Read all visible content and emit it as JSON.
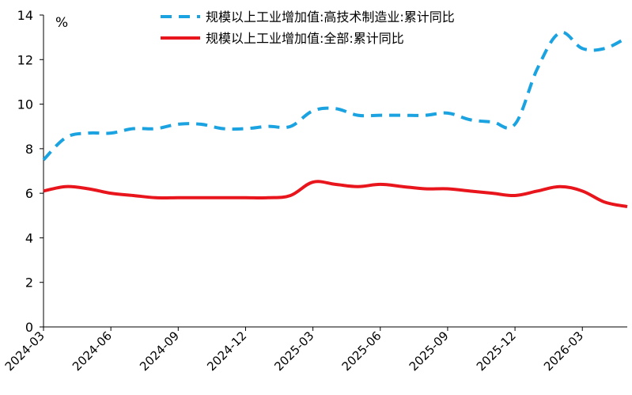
{
  "chart_data": {
    "type": "line",
    "unit_label": "%",
    "ylim": [
      0,
      14
    ],
    "y_ticks": [
      0,
      2,
      4,
      6,
      8,
      10,
      12,
      14
    ],
    "x": [
      "2024-03",
      "2024-04",
      "2024-05",
      "2024-06",
      "2024-07",
      "2024-08",
      "2024-09",
      "2024-10",
      "2024-11",
      "2024-12",
      "2025-01",
      "2025-02",
      "2025-03",
      "2025-04",
      "2025-05",
      "2025-06",
      "2025-07",
      "2025-08",
      "2025-09",
      "2025-10",
      "2025-11",
      "2025-12",
      "2026-01",
      "2026-02",
      "2026-03",
      "2026-04",
      "2026-05"
    ],
    "x_tick_labels": [
      "2024-03",
      "2024-06",
      "2024-09",
      "2024-12",
      "2025-03",
      "2025-06",
      "2025-09",
      "2025-12",
      "2026-03"
    ],
    "legend_position": "top-center",
    "grid": false,
    "series": [
      {
        "name": "规模以上工业增加值:高技术制造业:累计同比",
        "color": "#1aa3e0",
        "dash": "dashed",
        "values": [
          7.5,
          8.5,
          8.7,
          8.7,
          8.9,
          8.9,
          9.1,
          9.1,
          8.9,
          8.9,
          9.0,
          9.0,
          9.7,
          9.8,
          9.5,
          9.5,
          9.5,
          9.5,
          9.6,
          9.3,
          9.2,
          9.1,
          11.6,
          13.2,
          12.5,
          12.5,
          13.0
        ]
      },
      {
        "name": "规模以上工业增加值:全部:累计同比",
        "color": "#e8161c",
        "dash": "solid",
        "values": [
          6.1,
          6.3,
          6.2,
          6.0,
          5.9,
          5.8,
          5.8,
          5.8,
          5.8,
          5.8,
          5.8,
          5.9,
          6.5,
          6.4,
          6.3,
          6.4,
          6.3,
          6.2,
          6.2,
          6.1,
          6.0,
          5.9,
          6.1,
          6.3,
          6.1,
          5.6,
          5.4
        ]
      }
    ]
  }
}
